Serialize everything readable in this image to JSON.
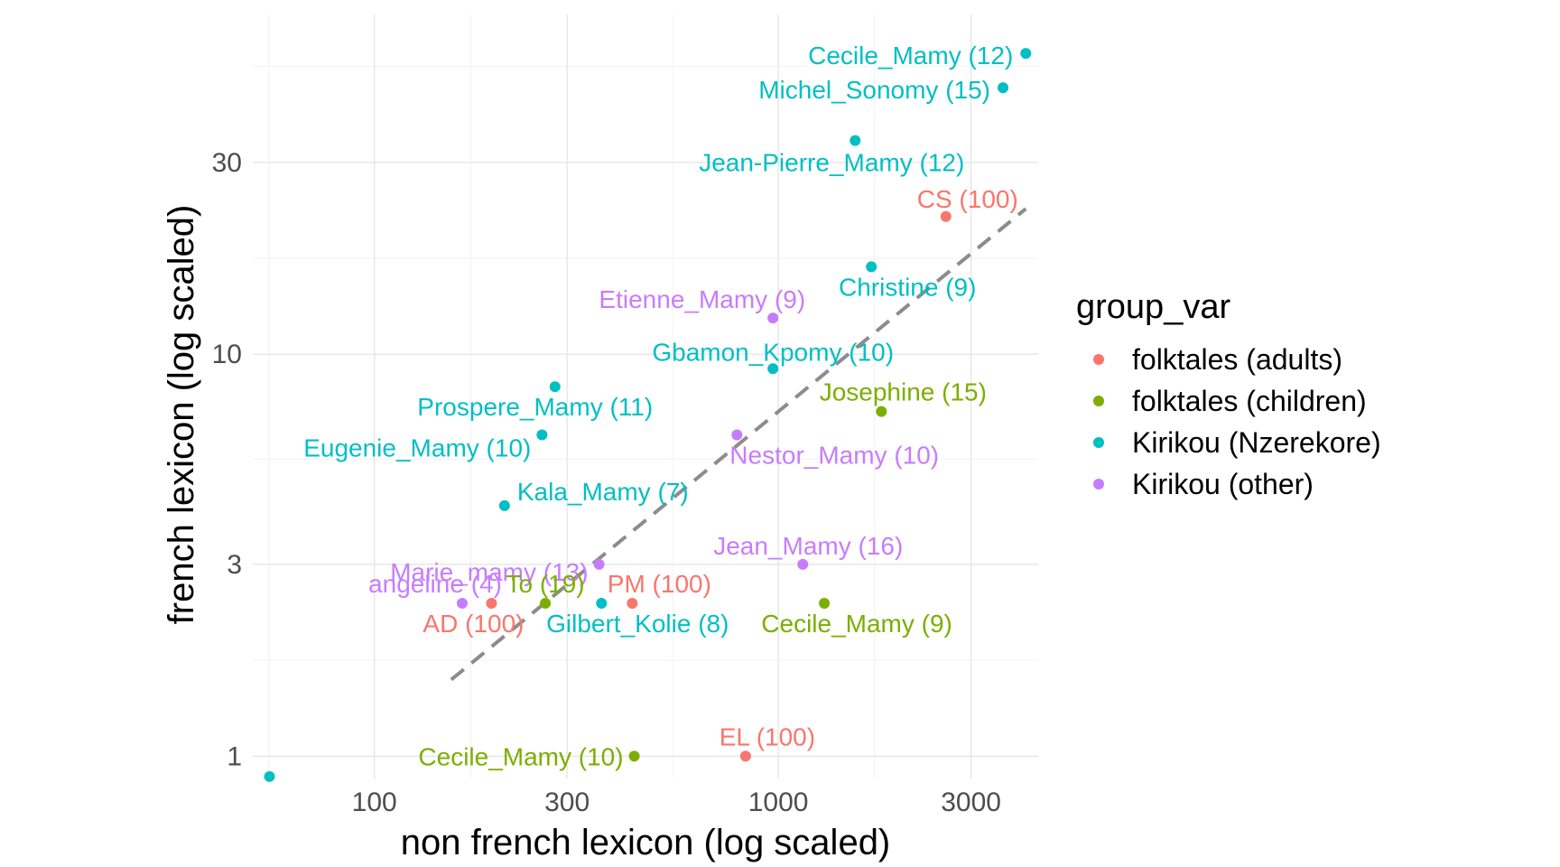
{
  "chart_data": {
    "type": "scatter",
    "title": "",
    "xlabel": "non french lexicon (log scaled)",
    "ylabel": "french lexicon (log scaled)",
    "x_scale": "log",
    "y_scale": "log",
    "xlim": [
      50,
      4400
    ],
    "ylim": [
      0.88,
      70
    ],
    "x_ticks": [
      100,
      300,
      1000,
      3000
    ],
    "x_tick_labels": [
      "100",
      "300",
      "1000",
      "3000"
    ],
    "y_ticks": [
      1,
      3,
      10,
      30
    ],
    "y_tick_labels": [
      "1",
      "3",
      "10",
      "30"
    ],
    "grid": true,
    "legend_title": "group_var",
    "legend_position": "right",
    "groups": [
      {
        "name": "folktales (adults)",
        "color": "#F8766D"
      },
      {
        "name": "folktales (children)",
        "color": "#7CAE00"
      },
      {
        "name": "Kirikou (Nzerekore)",
        "color": "#00BFC4"
      },
      {
        "name": "Kirikou (other)",
        "color": "#C77CFF"
      }
    ],
    "trend_line": {
      "style": "dashed",
      "color": "#8c8c8c",
      "x": [
        155,
        4100
      ],
      "y": [
        1.55,
        23
      ]
    },
    "points": [
      {
        "label": "Cecile_Mamy (12)",
        "group": "Kirikou (Nzerekore)",
        "x": 4100,
        "y": 56,
        "label_anchor": "end",
        "label_dx": -14,
        "label_dy": 12
      },
      {
        "label": "Michel_Sonomy (15)",
        "group": "Kirikou (Nzerekore)",
        "x": 3600,
        "y": 46,
        "label_anchor": "end",
        "label_dx": -14,
        "label_dy": 12
      },
      {
        "label": "Jean-Pierre_Mamy (12)",
        "group": "Kirikou (Nzerekore)",
        "x": 1550,
        "y": 34,
        "label_anchor": "middle",
        "label_dx": -26,
        "label_dy": 34
      },
      {
        "label": "CS (100)",
        "group": "folktales (adults)",
        "x": 2600,
        "y": 22,
        "label_anchor": "middle",
        "label_dx": 24,
        "label_dy": -10
      },
      {
        "label": "Christine (9)",
        "group": "Kirikou (Nzerekore)",
        "x": 1700,
        "y": 16.5,
        "label_anchor": "middle",
        "label_dx": 40,
        "label_dy": 32
      },
      {
        "label": "Etienne_Mamy (9)",
        "group": "Kirikou (other)",
        "x": 970,
        "y": 12.3,
        "label_anchor": "end",
        "label_dx": 36,
        "label_dy": -11
      },
      {
        "label": "Gbamon_Kpomy (10)",
        "group": "Kirikou (Nzerekore)",
        "x": 970,
        "y": 9.2,
        "label_anchor": "middle",
        "label_dx": 0,
        "label_dy": -9
      },
      {
        "label": "Josephine (15)",
        "group": "folktales (children)",
        "x": 1800,
        "y": 7.2,
        "label_anchor": "middle",
        "label_dx": 24,
        "label_dy": -12
      },
      {
        "label": "Prospere_Mamy (11)",
        "group": "Kirikou (Nzerekore)",
        "x": 280,
        "y": 8.3,
        "label_anchor": "middle",
        "label_dx": -22,
        "label_dy": 32
      },
      {
        "label": "Eugenie_Mamy (10)",
        "group": "Kirikou (Nzerekore)",
        "x": 260,
        "y": 6.3,
        "label_anchor": "end",
        "label_dx": -12,
        "label_dy": 24
      },
      {
        "label": "Nestor_Mamy (10)",
        "group": "Kirikou (other)",
        "x": 790,
        "y": 6.3,
        "label_anchor": "start",
        "label_dx": -8,
        "label_dy": 32
      },
      {
        "label": "Kala_Mamy (7)",
        "group": "Kirikou (Nzerekore)",
        "x": 210,
        "y": 4.2,
        "label_anchor": "start",
        "label_dx": 14,
        "label_dy": -6
      },
      {
        "label": "Marie_mamy (13)",
        "group": "Kirikou (other)",
        "x": 360,
        "y": 3,
        "label_anchor": "end",
        "label_dx": -12,
        "label_dy": 18
      },
      {
        "label": "Jean_Mamy (16)",
        "group": "Kirikou (other)",
        "x": 1150,
        "y": 3,
        "label_anchor": "middle",
        "label_dx": 6,
        "label_dy": -11
      },
      {
        "label": "angeline (4)",
        "group": "Kirikou (other)",
        "x": 165,
        "y": 2.4,
        "label_anchor": "middle",
        "label_dx": -30,
        "label_dy": -12
      },
      {
        "label": "AD (100)",
        "group": "folktales (adults)",
        "x": 195,
        "y": 2.4,
        "label_anchor": "middle",
        "label_dx": -20,
        "label_dy": 32
      },
      {
        "label": "To (19)",
        "group": "folktales (children)",
        "x": 265,
        "y": 2.4,
        "label_anchor": "middle",
        "label_dx": 0,
        "label_dy": -12
      },
      {
        "label": "Gilbert_Kolie (8)",
        "group": "Kirikou (Nzerekore)",
        "x": 365,
        "y": 2.4,
        "label_anchor": "middle",
        "label_dx": 40,
        "label_dy": 32
      },
      {
        "label": "PM (100)",
        "group": "folktales (adults)",
        "x": 435,
        "y": 2.4,
        "label_anchor": "middle",
        "label_dx": 30,
        "label_dy": -12
      },
      {
        "label": "Cecile_Mamy (9)",
        "group": "folktales (children)",
        "x": 1300,
        "y": 2.4,
        "label_anchor": "middle",
        "label_dx": 36,
        "label_dy": 32
      },
      {
        "label": "Cecile_Mamy (10)",
        "group": "folktales (children)",
        "x": 440,
        "y": 1,
        "label_anchor": "end",
        "label_dx": -12,
        "label_dy": 10
      },
      {
        "label": "EL (100)",
        "group": "folktales (adults)",
        "x": 830,
        "y": 1,
        "label_anchor": "middle",
        "label_dx": 24,
        "label_dy": -12
      },
      {
        "label": "",
        "group": "Kirikou (Nzerekore)",
        "x": 55,
        "y": 0.89,
        "label_anchor": "middle",
        "label_dx": 0,
        "label_dy": 0
      }
    ]
  }
}
